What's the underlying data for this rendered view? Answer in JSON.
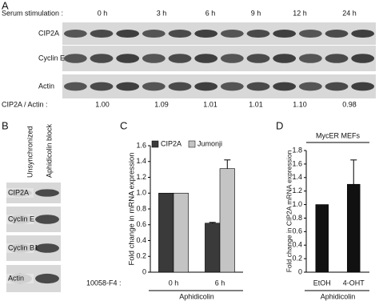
{
  "panel_a": {
    "label": "A",
    "stimulation_label": "Serum stimulation :",
    "timepoints": [
      "0 h",
      "3 h",
      "6 h",
      "9 h",
      "12 h",
      "24 h"
    ],
    "rows": [
      "CIP2A",
      "Cyclin E",
      "Actin"
    ],
    "ratio_label": "CIP2A / Actin :",
    "ratios": [
      "1.00",
      "1.09",
      "1.01",
      "1.01",
      "1.10",
      "0.98"
    ]
  },
  "panel_b": {
    "label": "B",
    "columns": [
      "Unsynchronized",
      "Aphidicolin block"
    ],
    "rows": [
      "CIP2A",
      "Cyclin E",
      "Cyclin B1",
      "Actin"
    ]
  },
  "chart_data": [
    {
      "type": "bar",
      "panel_label": "C",
      "ylabel": "Fold change in mRNA expression",
      "xprefix": "10058-F4 :",
      "xlabel": "Aphidicolin",
      "categories": [
        "0 h",
        "6 h"
      ],
      "series": [
        {
          "name": "CIP2A",
          "color": "#3a3a3a",
          "values": [
            1.0,
            0.62
          ],
          "errors": [
            0,
            0.01
          ]
        },
        {
          "name": "Jumonji",
          "color": "#c4c4c4",
          "values": [
            1.0,
            1.31
          ],
          "errors": [
            0,
            0.11
          ]
        }
      ],
      "ylim": [
        0,
        1.6
      ],
      "yticks": [
        0,
        0.2,
        0.4,
        0.6,
        0.8,
        {
          "value": 1,
          "label": "1.0"
        },
        1.2,
        1.4,
        1.6
      ]
    },
    {
      "type": "bar",
      "panel_label": "D",
      "ylabel": "Fold change in CIP2A mRNA expression",
      "annotation": "MycER MEFs",
      "xlabel": "Aphidicolin",
      "categories": [
        "EtOH",
        "4-OHT"
      ],
      "values": [
        1.0,
        1.3
      ],
      "errors": [
        0,
        0.36
      ],
      "color": "#111111",
      "ylim": [
        0,
        1.8
      ],
      "yticks": [
        0,
        0.2,
        0.4,
        0.6,
        0.8,
        {
          "value": 1,
          "label": "1.0"
        },
        1.2,
        1.4,
        1.6,
        1.8
      ]
    }
  ]
}
